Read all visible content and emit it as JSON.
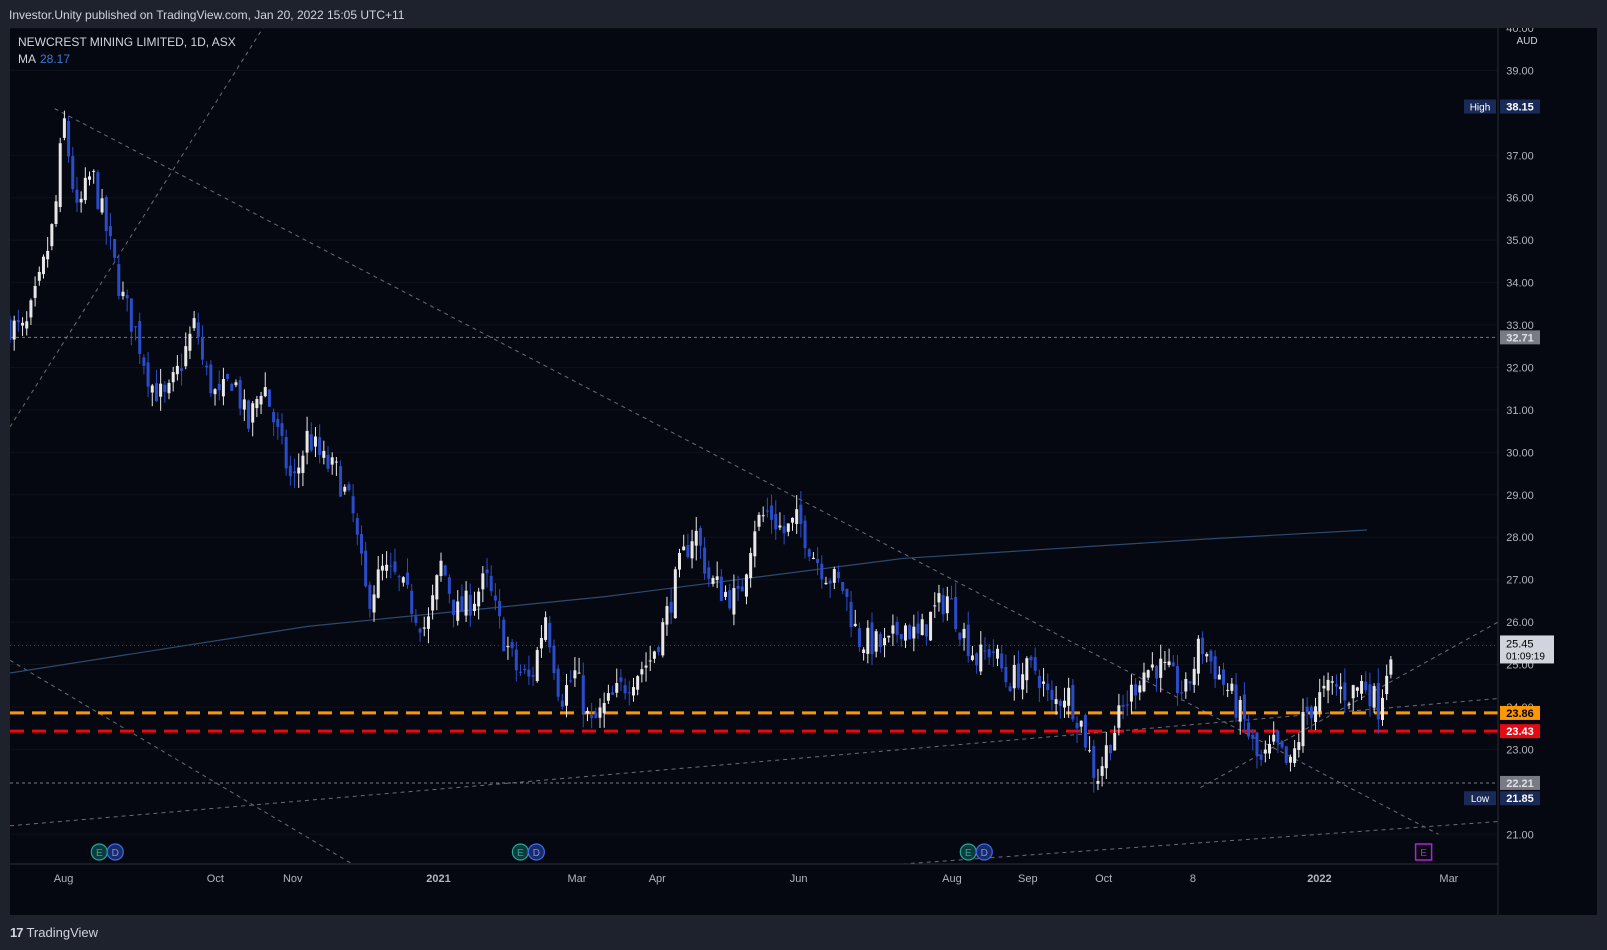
{
  "header": {
    "publish_line": "Investor.Unity published on TradingView.com, Jan 20, 2022 15:05 UTC+11"
  },
  "legend": {
    "symbol": "NEWCREST MINING LIMITED, 1D, ASX",
    "ma_label": "MA",
    "ma_value": "28.17"
  },
  "footer": {
    "brand": "TradingView"
  },
  "chart_data": {
    "type": "candlestick",
    "currency": "AUD",
    "ylim": [
      20.3,
      40.0
    ],
    "y_ticks": [
      "40.00",
      "39.00",
      "37.00",
      "36.00",
      "35.00",
      "34.00",
      "33.00",
      "32.00",
      "31.00",
      "30.00",
      "29.00",
      "28.00",
      "27.00",
      "26.00",
      "25.00",
      "24.00",
      "23.00",
      "21.00"
    ],
    "x_ticks": [
      {
        "label": "Aug",
        "t": 0.036
      },
      {
        "label": "Oct",
        "t": 0.138
      },
      {
        "label": "Nov",
        "t": 0.19
      },
      {
        "label": "2021",
        "t": 0.288
      },
      {
        "label": "Mar",
        "t": 0.381
      },
      {
        "label": "Apr",
        "t": 0.435
      },
      {
        "label": "Jun",
        "t": 0.53
      },
      {
        "label": "Aug",
        "t": 0.633
      },
      {
        "label": "Sep",
        "t": 0.684
      },
      {
        "label": "Oct",
        "t": 0.735
      },
      {
        "label": "8",
        "t": 0.795
      },
      {
        "label": "2022",
        "t": 0.88
      },
      {
        "label": "Mar",
        "t": 0.967
      }
    ],
    "price_path": [
      [
        0.0,
        33.0
      ],
      [
        0.01,
        32.8
      ],
      [
        0.02,
        34.0
      ],
      [
        0.03,
        35.5
      ],
      [
        0.036,
        37.9
      ],
      [
        0.045,
        35.6
      ],
      [
        0.055,
        36.6
      ],
      [
        0.065,
        35.2
      ],
      [
        0.075,
        33.7
      ],
      [
        0.085,
        32.8
      ],
      [
        0.095,
        31.6
      ],
      [
        0.105,
        31.2
      ],
      [
        0.115,
        32.1
      ],
      [
        0.125,
        33.1
      ],
      [
        0.13,
        32.0
      ],
      [
        0.14,
        31.2
      ],
      [
        0.15,
        31.8
      ],
      [
        0.16,
        30.6
      ],
      [
        0.17,
        31.7
      ],
      [
        0.18,
        30.4
      ],
      [
        0.19,
        29.2
      ],
      [
        0.2,
        30.4
      ],
      [
        0.21,
        29.8
      ],
      [
        0.22,
        29.5
      ],
      [
        0.23,
        28.6
      ],
      [
        0.24,
        26.5
      ],
      [
        0.25,
        27.2
      ],
      [
        0.26,
        27.0
      ],
      [
        0.27,
        26.4
      ],
      [
        0.28,
        25.8
      ],
      [
        0.29,
        27.4
      ],
      [
        0.3,
        26.2
      ],
      [
        0.31,
        26.5
      ],
      [
        0.32,
        27.0
      ],
      [
        0.33,
        25.8
      ],
      [
        0.34,
        24.9
      ],
      [
        0.35,
        24.6
      ],
      [
        0.36,
        26.2
      ],
      [
        0.37,
        24.2
      ],
      [
        0.38,
        24.8
      ],
      [
        0.39,
        23.5
      ],
      [
        0.4,
        24.0
      ],
      [
        0.41,
        24.4
      ],
      [
        0.42,
        24.8
      ],
      [
        0.43,
        25.1
      ],
      [
        0.44,
        26.0
      ],
      [
        0.45,
        27.3
      ],
      [
        0.46,
        28.2
      ],
      [
        0.47,
        27.0
      ],
      [
        0.48,
        26.7
      ],
      [
        0.49,
        26.5
      ],
      [
        0.5,
        28.3
      ],
      [
        0.51,
        28.6
      ],
      [
        0.52,
        28.1
      ],
      [
        0.53,
        28.4
      ],
      [
        0.54,
        27.6
      ],
      [
        0.55,
        27.1
      ],
      [
        0.56,
        26.8
      ],
      [
        0.57,
        25.6
      ],
      [
        0.58,
        25.5
      ],
      [
        0.59,
        25.4
      ],
      [
        0.6,
        26.0
      ],
      [
        0.61,
        25.6
      ],
      [
        0.62,
        26.2
      ],
      [
        0.63,
        26.6
      ],
      [
        0.64,
        25.8
      ],
      [
        0.65,
        25.1
      ],
      [
        0.66,
        25.4
      ],
      [
        0.67,
        24.6
      ],
      [
        0.68,
        24.8
      ],
      [
        0.69,
        24.9
      ],
      [
        0.7,
        24.0
      ],
      [
        0.71,
        24.4
      ],
      [
        0.72,
        23.6
      ],
      [
        0.73,
        22.3
      ],
      [
        0.74,
        23.3
      ],
      [
        0.75,
        24.1
      ],
      [
        0.76,
        24.8
      ],
      [
        0.77,
        25.0
      ],
      [
        0.78,
        24.7
      ],
      [
        0.79,
        24.3
      ],
      [
        0.8,
        25.5
      ],
      [
        0.81,
        24.9
      ],
      [
        0.82,
        24.3
      ],
      [
        0.83,
        23.6
      ],
      [
        0.84,
        22.6
      ],
      [
        0.85,
        23.1
      ],
      [
        0.86,
        22.5
      ],
      [
        0.87,
        23.8
      ],
      [
        0.88,
        24.2
      ],
      [
        0.89,
        24.5
      ],
      [
        0.9,
        24.3
      ],
      [
        0.91,
        24.6
      ],
      [
        0.92,
        24.0
      ],
      [
        0.928,
        25.45
      ]
    ],
    "ma_series": {
      "name": "MA",
      "points": [
        [
          0.0,
          24.8
        ],
        [
          0.2,
          25.9
        ],
        [
          0.4,
          26.6
        ],
        [
          0.6,
          27.5
        ],
        [
          0.8,
          27.95
        ],
        [
          0.912,
          28.17
        ]
      ]
    },
    "horizontal_levels": [
      {
        "value": 32.71,
        "label": "32.71",
        "style": "dotted",
        "color": "#787b86"
      },
      {
        "value": 23.86,
        "label": "23.86",
        "style": "dashed",
        "color": "#ff9800"
      },
      {
        "value": 23.43,
        "label": "23.43",
        "style": "dashed",
        "color": "#e50914"
      },
      {
        "value": 22.21,
        "label": "22.21",
        "style": "dotted",
        "color": "#787b86"
      }
    ],
    "markers": {
      "high": {
        "label": "High",
        "value": "38.15",
        "t": 0.036
      },
      "low": {
        "label": "Low",
        "value": "21.85",
        "t": 0.73
      },
      "last": {
        "value": "25.45",
        "countdown": "01:09:19"
      }
    },
    "trendlines": [
      {
        "from": [
          0.03,
          38.1
        ],
        "to": [
          0.96,
          21.0
        ]
      },
      {
        "from": [
          0.0,
          30.6
        ],
        "to": [
          0.17,
          40.0
        ]
      },
      {
        "from": [
          0.0,
          25.1
        ],
        "to": [
          0.23,
          20.3
        ]
      },
      {
        "from": [
          0.0,
          21.2
        ],
        "to": [
          1.0,
          24.2
        ]
      },
      {
        "from": [
          0.6,
          20.3
        ],
        "to": [
          1.0,
          21.3
        ]
      },
      {
        "from": [
          0.8,
          22.1
        ],
        "to": [
          1.0,
          26.0
        ]
      }
    ],
    "events": [
      {
        "t": 0.06,
        "tags": [
          "E",
          "D"
        ]
      },
      {
        "t": 0.343,
        "tags": [
          "E",
          "D"
        ]
      },
      {
        "t": 0.644,
        "tags": [
          "E",
          "D"
        ]
      },
      {
        "t": 0.95,
        "tags": [
          "E"
        ]
      }
    ],
    "colors": {
      "up": "#e8e8e8",
      "down": "#2a4cc9",
      "ma": "#2d4a6e",
      "background": "#050810"
    }
  }
}
